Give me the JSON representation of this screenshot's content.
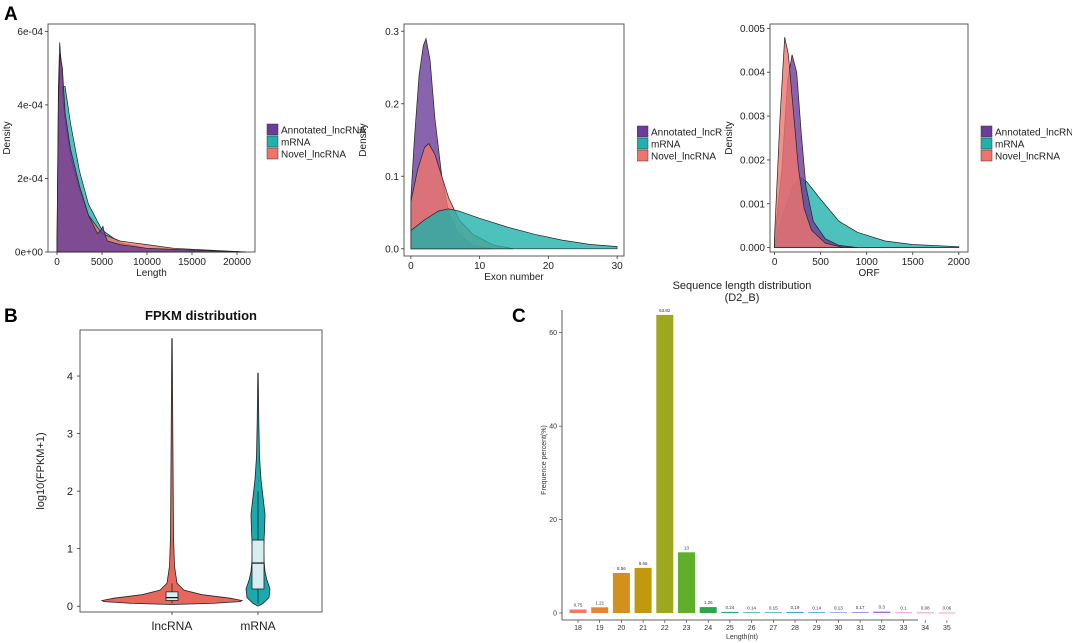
{
  "panel_labels": {
    "a": "A",
    "b": "B",
    "c": "C"
  },
  "colors": {
    "annotated": "#6a3d9a",
    "mrna": "#20b2aa",
    "novel": "#f0746b",
    "violin_lnc": "#e8675c",
    "violin_mrna": "#1aa9ae",
    "box": "#d7eef0"
  },
  "chart_data": [
    {
      "type": "area",
      "id": "length",
      "title": "",
      "xlabel": "Length",
      "ylabel": "Density",
      "xlim": [
        -1000,
        22000
      ],
      "ylim": [
        0,
        0.00062
      ],
      "xticks": [
        0,
        5000,
        10000,
        15000,
        20000
      ],
      "xtick_labels": [
        "0",
        "5000",
        "10000",
        "15000",
        "20000"
      ],
      "yticks": [
        0,
        0.0002,
        0.0004,
        0.0006
      ],
      "ytick_labels": [
        "0e+00",
        "2e-04",
        "4e-04",
        "6e-04"
      ],
      "legend": [
        "Annotated_lncRNA",
        "mRNA",
        "Novel_lncRNA"
      ],
      "series": [
        {
          "name": "mRNA",
          "points": [
            [
              0,
              2e-05
            ],
            [
              200,
              0.0003
            ],
            [
              500,
              0.00045
            ],
            [
              900,
              0.00045
            ],
            [
              1500,
              0.00035
            ],
            [
              2500,
              0.00022
            ],
            [
              3500,
              0.00013
            ],
            [
              5000,
              6e-05
            ],
            [
              7000,
              2.5e-05
            ],
            [
              10000,
              1e-05
            ],
            [
              15000,
              3e-06
            ],
            [
              21000,
              0
            ]
          ]
        },
        {
          "name": "Novel_lncRNA",
          "points": [
            [
              0,
              3e-05
            ],
            [
              150,
              0.00045
            ],
            [
              300,
              0.00057
            ],
            [
              500,
              0.0005
            ],
            [
              800,
              0.00038
            ],
            [
              1500,
              0.00026
            ],
            [
              2500,
              0.00017
            ],
            [
              3500,
              0.0001
            ],
            [
              5000,
              5e-05
            ],
            [
              7000,
              3e-05
            ],
            [
              10000,
              2e-05
            ],
            [
              13000,
              1e-05
            ],
            [
              21000,
              0
            ]
          ]
        },
        {
          "name": "Annotated_lncRNA",
          "points": [
            [
              0,
              3e-05
            ],
            [
              150,
              0.0004
            ],
            [
              350,
              0.00054
            ],
            [
              600,
              0.0005
            ],
            [
              900,
              0.00038
            ],
            [
              1500,
              0.00028
            ],
            [
              2500,
              0.00018
            ],
            [
              3500,
              0.0001
            ],
            [
              4500,
              5e-05
            ],
            [
              4900,
              6e-05
            ],
            [
              5100,
              7e-05
            ],
            [
              5300,
              5e-05
            ],
            [
              5600,
              3e-05
            ],
            [
              7000,
              2e-05
            ],
            [
              10000,
              1e-05
            ],
            [
              21000,
              0
            ]
          ]
        }
      ]
    },
    {
      "type": "area",
      "id": "exon",
      "title": "",
      "xlabel": "Exon number",
      "ylabel": "Density",
      "xlim": [
        -1,
        31
      ],
      "ylim": [
        -0.01,
        0.31
      ],
      "xticks": [
        0,
        10,
        20,
        30
      ],
      "xtick_labels": [
        "0",
        "10",
        "20",
        "30"
      ],
      "yticks": [
        0,
        0.1,
        0.2,
        0.3
      ],
      "ytick_labels": [
        "0.0",
        "0.1",
        "0.2",
        "0.3"
      ],
      "legend": [
        "Annotated_lncRNA",
        "mRNA",
        "Novel_lncRNA"
      ],
      "series": [
        {
          "name": "Annotated_lncRNA",
          "points": [
            [
              0,
              0.07
            ],
            [
              0.5,
              0.15
            ],
            [
              1.2,
              0.24
            ],
            [
              1.8,
              0.28
            ],
            [
              2.2,
              0.29
            ],
            [
              2.8,
              0.26
            ],
            [
              3.5,
              0.18
            ],
            [
              4.5,
              0.1
            ],
            [
              5.5,
              0.05
            ],
            [
              7,
              0.02
            ],
            [
              9,
              0.005
            ],
            [
              12,
              0
            ]
          ]
        },
        {
          "name": "Novel_lncRNA",
          "points": [
            [
              0,
              0.065
            ],
            [
              1,
              0.11
            ],
            [
              2,
              0.14
            ],
            [
              2.6,
              0.145
            ],
            [
              3.5,
              0.13
            ],
            [
              4.5,
              0.1
            ],
            [
              5.5,
              0.07
            ],
            [
              7,
              0.04
            ],
            [
              9,
              0.02
            ],
            [
              12,
              0.005
            ],
            [
              15,
              0
            ]
          ]
        },
        {
          "name": "mRNA",
          "points": [
            [
              0,
              0.025
            ],
            [
              2,
              0.04
            ],
            [
              4,
              0.052
            ],
            [
              5.5,
              0.055
            ],
            [
              7,
              0.052
            ],
            [
              10,
              0.042
            ],
            [
              14,
              0.03
            ],
            [
              18,
              0.02
            ],
            [
              22,
              0.012
            ],
            [
              26,
              0.006
            ],
            [
              30,
              0.003
            ]
          ]
        }
      ]
    },
    {
      "type": "area",
      "id": "orf",
      "title": "",
      "xlabel": "ORF",
      "ylabel": "Density",
      "xlim": [
        -50,
        2100
      ],
      "ylim": [
        -0.0001,
        0.0051
      ],
      "xticks": [
        0,
        500,
        1000,
        1500,
        2000
      ],
      "xtick_labels": [
        "0",
        "500",
        "1000",
        "1500",
        "2000"
      ],
      "yticks": [
        0,
        0.001,
        0.002,
        0.003,
        0.004,
        0.005
      ],
      "ytick_labels": [
        "0.000",
        "0.001",
        "0.002",
        "0.003",
        "0.004",
        "0.005"
      ],
      "legend": [
        "Annotated_lncRNA",
        "mRNA",
        "Novel_lncRNA"
      ],
      "series": [
        {
          "name": "mRNA",
          "points": [
            [
              0,
              0.0001
            ],
            [
              100,
              0.0008
            ],
            [
              200,
              0.0014
            ],
            [
              280,
              0.0016
            ],
            [
              350,
              0.0015
            ],
            [
              500,
              0.0011
            ],
            [
              700,
              0.0006
            ],
            [
              900,
              0.00035
            ],
            [
              1200,
              0.00015
            ],
            [
              1500,
              7e-05
            ],
            [
              2000,
              2e-05
            ]
          ]
        },
        {
          "name": "Annotated_lncRNA",
          "points": [
            [
              0,
              0.0002
            ],
            [
              80,
              0.0018
            ],
            [
              140,
              0.0038
            ],
            [
              190,
              0.0044
            ],
            [
              240,
              0.004
            ],
            [
              290,
              0.0026
            ],
            [
              340,
              0.0014
            ],
            [
              420,
              0.0006
            ],
            [
              550,
              0.0002
            ],
            [
              700,
              5e-05
            ],
            [
              900,
              0
            ]
          ]
        },
        {
          "name": "Novel_lncRNA",
          "points": [
            [
              0,
              0.0003
            ],
            [
              60,
              0.003
            ],
            [
              110,
              0.0048
            ],
            [
              150,
              0.0044
            ],
            [
              200,
              0.0032
            ],
            [
              260,
              0.0018
            ],
            [
              320,
              0.0009
            ],
            [
              400,
              0.0004
            ],
            [
              550,
              0.0001
            ],
            [
              750,
              0
            ]
          ]
        }
      ]
    },
    {
      "type": "violin",
      "id": "fpkm",
      "title": "FPKM distribution",
      "xlabel": "",
      "ylabel": "log10(FPKM+1)",
      "ylim": [
        -0.1,
        4.8
      ],
      "yticks": [
        0,
        1,
        2,
        3,
        4
      ],
      "ytick_labels": [
        "0",
        "1",
        "2",
        "3",
        "4"
      ],
      "categories": [
        "lncRNA",
        "mRNA"
      ],
      "violins": [
        {
          "name": "lncRNA",
          "max": 4.65,
          "q1": 0.1,
          "median": 0.15,
          "q3": 0.25,
          "whisker_low": 0.05,
          "whisker_high": 0.4
        },
        {
          "name": "mRNA",
          "max": 4.05,
          "q1": 0.3,
          "median": 0.75,
          "q3": 1.15,
          "whisker_low": 0.05,
          "whisker_high": 2.0
        }
      ]
    },
    {
      "type": "bar",
      "id": "seqlen",
      "title": "Sequence length distribution",
      "subtitle": "(D2_B)",
      "xlabel": "Length(nt)",
      "ylabel": "Frequence percent(%)",
      "ylim": [
        -1.5,
        67
      ],
      "yticks": [
        0,
        20,
        40,
        60
      ],
      "ytick_labels": [
        "0",
        "20",
        "40",
        "60"
      ],
      "categories": [
        "18",
        "19",
        "20",
        "21",
        "22",
        "23",
        "24",
        "25",
        "26",
        "27",
        "28",
        "29",
        "30",
        "31",
        "32",
        "33",
        "34",
        "35"
      ],
      "values": [
        0.75,
        1.21,
        8.56,
        9.65,
        63.82,
        13,
        1.26,
        0.24,
        0.14,
        0.15,
        0.19,
        0.14,
        0.13,
        0.17,
        0.3,
        0.1,
        0.08,
        0.06
      ],
      "value_labels": [
        "0.75",
        "1.21",
        "8.56",
        "9.65",
        "63.82",
        "13",
        "1.26",
        "0.24",
        "0.14",
        "0.15",
        "0.19",
        "0.14",
        "0.13",
        "0.17",
        "0.3",
        "0.1",
        "0.08",
        "0.06"
      ],
      "bar_colors": [
        "#f07a6a",
        "#e8842e",
        "#d4901e",
        "#c2980f",
        "#9ea81c",
        "#5fae2c",
        "#2aa84a",
        "#20aa78",
        "#1ea89a",
        "#1ea7b2",
        "#1ea3c6",
        "#2a96d6",
        "#5a88e0",
        "#8a7ae2",
        "#b06ad6",
        "#cf62c2",
        "#e25ea6",
        "#ee6a8c"
      ]
    }
  ]
}
